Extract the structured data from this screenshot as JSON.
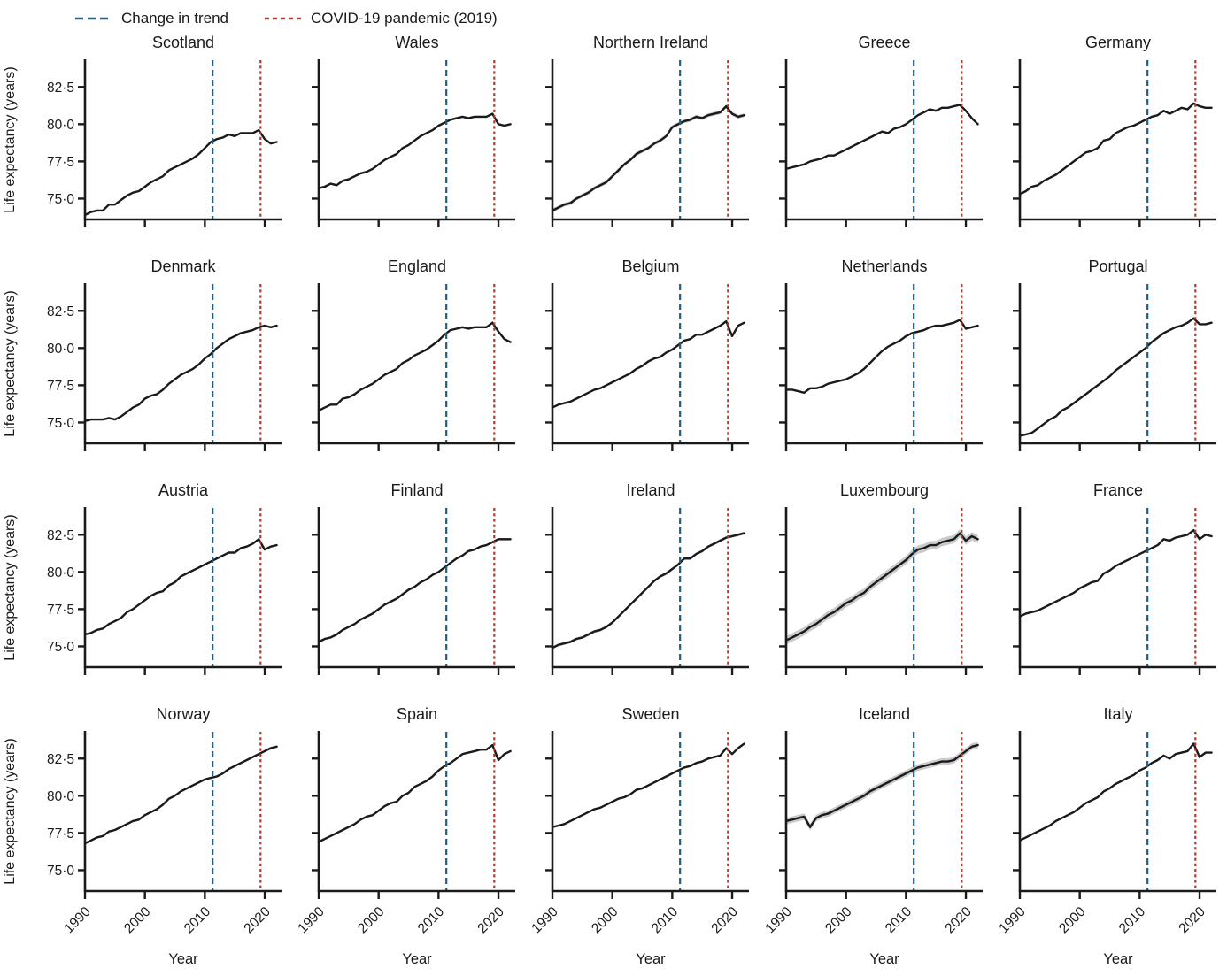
{
  "legend": {
    "items": [
      {
        "label": "Change in trend",
        "color": "#235d82",
        "style": "long-dash"
      },
      {
        "label": "COVID-19 pandemic (2019)",
        "color": "#b23a2c",
        "style": "short-dash"
      }
    ]
  },
  "axes": {
    "ylabel": "Life expectancy (years)",
    "xlabel": "Year",
    "ytick_labels": [
      "82·5",
      "80·0",
      "77·5",
      "75·0"
    ],
    "ytick_values": [
      82.5,
      80.0,
      77.5,
      75.0
    ],
    "xtick_labels": [
      "1990",
      "2000",
      "2010",
      "2020"
    ],
    "xtick_values": [
      1990,
      2000,
      2010,
      2020
    ],
    "ylim": [
      73.6,
      84.3
    ],
    "xlim": [
      1990,
      2022.8
    ],
    "grid": "off"
  },
  "vlines": {
    "change_in_trend_year": 2011.3,
    "covid_year": 2019.3
  },
  "colors": {
    "line": "#1a1a1a",
    "band": "#9e9e9e",
    "trend": "#235d82",
    "covid": "#b23a2c"
  },
  "chart_data": {
    "type": "line",
    "layout": "5 columns x 4 rows of small multiples",
    "x_start": 1990,
    "x_end": 2022,
    "x_step": 1,
    "ylabel": "Life expectancy (years)",
    "xlabel": "Year",
    "series": [
      {
        "name": "Scotland",
        "ci": 0.06,
        "values": [
          73.9,
          74.1,
          74.2,
          74.2,
          74.6,
          74.6,
          74.9,
          75.2,
          75.4,
          75.5,
          75.8,
          76.1,
          76.3,
          76.5,
          76.9,
          77.1,
          77.3,
          77.5,
          77.7,
          78.0,
          78.4,
          78.8,
          79.0,
          79.1,
          79.3,
          79.2,
          79.4,
          79.4,
          79.4,
          79.6,
          79.0,
          78.7,
          78.8
        ]
      },
      {
        "name": "Wales",
        "ci": 0.07,
        "values": [
          75.7,
          75.8,
          76.0,
          75.9,
          76.2,
          76.3,
          76.5,
          76.7,
          76.8,
          77.0,
          77.3,
          77.6,
          77.8,
          78.0,
          78.4,
          78.6,
          78.9,
          79.2,
          79.4,
          79.6,
          79.9,
          80.1,
          80.3,
          80.4,
          80.5,
          80.4,
          80.5,
          80.5,
          80.5,
          80.7,
          80.0,
          79.9,
          80.0
        ]
      },
      {
        "name": "Northern Ireland",
        "ci": 0.13,
        "values": [
          74.2,
          74.4,
          74.6,
          74.7,
          75.0,
          75.2,
          75.4,
          75.7,
          75.9,
          76.1,
          76.5,
          76.9,
          77.3,
          77.6,
          78.0,
          78.2,
          78.4,
          78.7,
          78.9,
          79.2,
          79.8,
          80.0,
          80.2,
          80.3,
          80.5,
          80.4,
          80.6,
          80.7,
          80.8,
          81.2,
          80.7,
          80.5,
          80.6
        ]
      },
      {
        "name": "Greece",
        "ci": 0.04,
        "values": [
          77.0,
          77.1,
          77.2,
          77.3,
          77.5,
          77.6,
          77.7,
          77.9,
          77.9,
          78.1,
          78.3,
          78.5,
          78.7,
          78.9,
          79.1,
          79.3,
          79.5,
          79.4,
          79.7,
          79.8,
          80.0,
          80.3,
          80.6,
          80.8,
          81.0,
          80.9,
          81.1,
          81.1,
          81.2,
          81.3,
          80.9,
          80.4,
          80.0
        ]
      },
      {
        "name": "Germany",
        "ci": 0.03,
        "values": [
          75.3,
          75.5,
          75.8,
          75.9,
          76.2,
          76.4,
          76.6,
          76.9,
          77.2,
          77.5,
          77.8,
          78.1,
          78.2,
          78.4,
          78.9,
          79.0,
          79.4,
          79.6,
          79.8,
          79.9,
          80.1,
          80.3,
          80.5,
          80.6,
          80.9,
          80.7,
          80.9,
          81.1,
          81.0,
          81.4,
          81.2,
          81.1,
          81.1
        ]
      },
      {
        "name": "Denmark",
        "ci": 0.06,
        "values": [
          75.1,
          75.2,
          75.2,
          75.2,
          75.3,
          75.2,
          75.4,
          75.7,
          76.0,
          76.2,
          76.6,
          76.8,
          76.9,
          77.2,
          77.6,
          77.9,
          78.2,
          78.4,
          78.6,
          78.9,
          79.3,
          79.6,
          80.0,
          80.3,
          80.6,
          80.8,
          81.0,
          81.1,
          81.2,
          81.4,
          81.5,
          81.4,
          81.5
        ]
      },
      {
        "name": "England",
        "ci": 0.03,
        "values": [
          75.8,
          76.0,
          76.2,
          76.2,
          76.6,
          76.7,
          76.9,
          77.2,
          77.4,
          77.6,
          77.9,
          78.2,
          78.4,
          78.6,
          79.0,
          79.2,
          79.5,
          79.7,
          79.9,
          80.2,
          80.5,
          80.9,
          81.2,
          81.3,
          81.4,
          81.3,
          81.4,
          81.4,
          81.4,
          81.7,
          81.1,
          80.6,
          80.4
        ]
      },
      {
        "name": "Belgium",
        "ci": 0.05,
        "values": [
          76.0,
          76.2,
          76.3,
          76.4,
          76.6,
          76.8,
          77.0,
          77.2,
          77.3,
          77.5,
          77.7,
          77.9,
          78.1,
          78.3,
          78.6,
          78.8,
          79.1,
          79.3,
          79.4,
          79.7,
          79.9,
          80.2,
          80.5,
          80.6,
          80.9,
          80.9,
          81.1,
          81.3,
          81.5,
          81.8,
          80.8,
          81.5,
          81.7
        ]
      },
      {
        "name": "Netherlands",
        "ci": 0.04,
        "values": [
          77.2,
          77.2,
          77.1,
          77.0,
          77.3,
          77.3,
          77.4,
          77.6,
          77.7,
          77.8,
          77.9,
          78.1,
          78.3,
          78.6,
          79.0,
          79.4,
          79.8,
          80.1,
          80.3,
          80.5,
          80.8,
          81.0,
          81.1,
          81.2,
          81.4,
          81.5,
          81.5,
          81.6,
          81.7,
          81.9,
          81.3,
          81.4,
          81.5
        ]
      },
      {
        "name": "Portugal",
        "ci": 0.05,
        "values": [
          74.1,
          74.2,
          74.3,
          74.6,
          74.9,
          75.2,
          75.4,
          75.8,
          76.0,
          76.3,
          76.6,
          76.9,
          77.2,
          77.5,
          77.8,
          78.1,
          78.5,
          78.8,
          79.1,
          79.4,
          79.7,
          80.0,
          80.4,
          80.7,
          81.0,
          81.2,
          81.4,
          81.5,
          81.7,
          82.0,
          81.6,
          81.6,
          81.7
        ]
      },
      {
        "name": "Austria",
        "ci": 0.05,
        "values": [
          75.8,
          75.9,
          76.1,
          76.2,
          76.5,
          76.7,
          76.9,
          77.3,
          77.5,
          77.8,
          78.1,
          78.4,
          78.6,
          78.7,
          79.1,
          79.3,
          79.7,
          79.9,
          80.1,
          80.3,
          80.5,
          80.7,
          80.9,
          81.1,
          81.3,
          81.3,
          81.6,
          81.7,
          81.9,
          82.2,
          81.5,
          81.7,
          81.8
        ]
      },
      {
        "name": "Finland",
        "ci": 0.08,
        "values": [
          75.3,
          75.5,
          75.6,
          75.8,
          76.1,
          76.3,
          76.5,
          76.8,
          77.0,
          77.2,
          77.5,
          77.8,
          78.0,
          78.2,
          78.5,
          78.8,
          79.0,
          79.3,
          79.5,
          79.8,
          80.0,
          80.3,
          80.6,
          80.9,
          81.1,
          81.4,
          81.5,
          81.7,
          81.8,
          82.0,
          82.2,
          82.2,
          82.2
        ]
      },
      {
        "name": "Ireland",
        "ci": 0.1,
        "values": [
          74.9,
          75.1,
          75.2,
          75.3,
          75.5,
          75.6,
          75.8,
          76.0,
          76.1,
          76.3,
          76.6,
          77.0,
          77.4,
          77.8,
          78.2,
          78.6,
          79.0,
          79.4,
          79.7,
          79.9,
          80.2,
          80.5,
          80.9,
          80.9,
          81.2,
          81.4,
          81.7,
          81.9,
          82.1,
          82.3,
          82.4,
          82.5,
          82.6
        ]
      },
      {
        "name": "Luxembourg",
        "ci": 0.28,
        "values": [
          75.4,
          75.6,
          75.8,
          76.0,
          76.3,
          76.5,
          76.8,
          77.1,
          77.3,
          77.6,
          77.9,
          78.1,
          78.4,
          78.6,
          79.0,
          79.3,
          79.6,
          79.9,
          80.2,
          80.5,
          80.8,
          81.2,
          81.5,
          81.6,
          81.8,
          81.8,
          82.0,
          82.1,
          82.2,
          82.6,
          82.1,
          82.4,
          82.2
        ]
      },
      {
        "name": "France",
        "ci": 0.03,
        "values": [
          77.0,
          77.2,
          77.3,
          77.4,
          77.6,
          77.8,
          78.0,
          78.2,
          78.4,
          78.6,
          78.9,
          79.1,
          79.3,
          79.4,
          79.9,
          80.1,
          80.4,
          80.6,
          80.8,
          81.0,
          81.2,
          81.4,
          81.6,
          81.8,
          82.2,
          82.1,
          82.3,
          82.4,
          82.5,
          82.8,
          82.2,
          82.5,
          82.4
        ]
      },
      {
        "name": "Norway",
        "ci": 0.07,
        "values": [
          76.8,
          77.0,
          77.2,
          77.3,
          77.6,
          77.7,
          77.9,
          78.1,
          78.3,
          78.4,
          78.7,
          78.9,
          79.1,
          79.4,
          79.8,
          80.0,
          80.3,
          80.5,
          80.7,
          80.9,
          81.1,
          81.2,
          81.3,
          81.5,
          81.8,
          82.0,
          82.2,
          82.4,
          82.6,
          82.8,
          83.0,
          83.2,
          83.3
        ]
      },
      {
        "name": "Spain",
        "ci": 0.04,
        "values": [
          76.9,
          77.1,
          77.3,
          77.5,
          77.7,
          77.9,
          78.1,
          78.4,
          78.6,
          78.7,
          79.0,
          79.3,
          79.5,
          79.6,
          80.0,
          80.2,
          80.6,
          80.8,
          81.0,
          81.3,
          81.7,
          82.0,
          82.2,
          82.5,
          82.8,
          82.9,
          83.0,
          83.1,
          83.1,
          83.4,
          82.4,
          82.8,
          83.0
        ]
      },
      {
        "name": "Sweden",
        "ci": 0.06,
        "values": [
          77.9,
          78.0,
          78.1,
          78.3,
          78.5,
          78.7,
          78.9,
          79.1,
          79.2,
          79.4,
          79.6,
          79.8,
          79.9,
          80.1,
          80.4,
          80.5,
          80.7,
          80.9,
          81.1,
          81.3,
          81.5,
          81.7,
          81.9,
          82.0,
          82.2,
          82.3,
          82.5,
          82.6,
          82.7,
          83.2,
          82.8,
          83.2,
          83.5
        ]
      },
      {
        "name": "Iceland",
        "ci": 0.22,
        "values": [
          78.3,
          78.4,
          78.5,
          78.6,
          77.9,
          78.5,
          78.7,
          78.8,
          79.0,
          79.2,
          79.4,
          79.6,
          79.8,
          80.0,
          80.3,
          80.5,
          80.7,
          80.9,
          81.1,
          81.3,
          81.5,
          81.7,
          81.9,
          82.0,
          82.1,
          82.2,
          82.3,
          82.3,
          82.4,
          82.7,
          83.0,
          83.3,
          83.4
        ]
      },
      {
        "name": "Italy",
        "ci": 0.03,
        "values": [
          77.0,
          77.2,
          77.4,
          77.6,
          77.8,
          78.0,
          78.3,
          78.5,
          78.7,
          78.9,
          79.2,
          79.5,
          79.7,
          79.9,
          80.3,
          80.5,
          80.8,
          81.0,
          81.2,
          81.4,
          81.7,
          81.9,
          82.2,
          82.4,
          82.7,
          82.5,
          82.8,
          82.9,
          83.0,
          83.5,
          82.6,
          82.9,
          82.9
        ]
      }
    ]
  }
}
